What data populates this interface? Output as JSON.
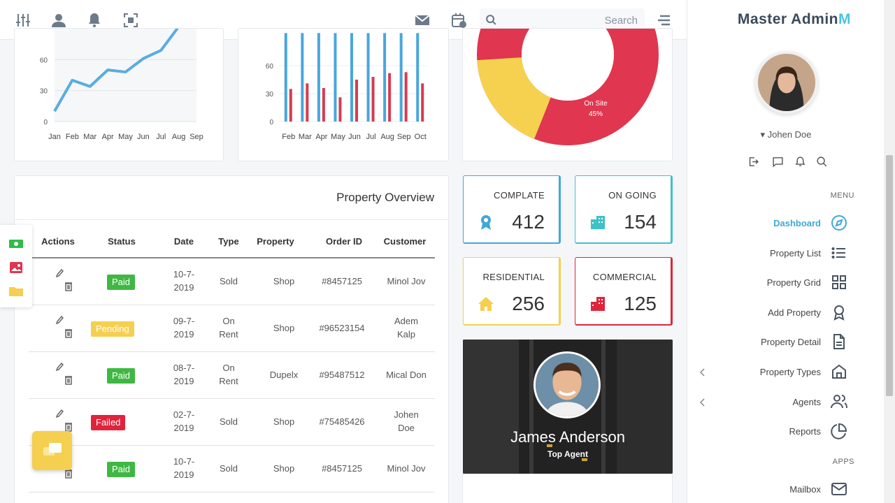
{
  "topbar": {
    "search_placeholder": "Search",
    "icons": [
      "sliders-icon",
      "user-icon",
      "bell-icon",
      "focus-icon",
      "mail-icon",
      "calendar-icon",
      "search-icon",
      "menu-icon"
    ]
  },
  "charts": [
    {
      "chart_data": {
        "type": "line",
        "categories": [
          "Jan",
          "Feb",
          "Mar",
          "Apr",
          "May",
          "Jun",
          "Jul",
          "Aug",
          "Sep"
        ],
        "y_ticks": [
          "0",
          "30",
          "60"
        ],
        "series": [
          {
            "values": [
              10,
              40,
              34,
              50,
              48,
              61,
              69,
              92,
              110
            ]
          }
        ],
        "ylim": [
          0,
          90
        ],
        "color": "#5aace0"
      }
    },
    {
      "chart_data": {
        "type": "bar",
        "categories": [
          "Feb",
          "Mar",
          "Apr",
          "May",
          "Jun",
          "Jul",
          "Aug",
          "Sep",
          "Oct"
        ],
        "y_ticks": [
          "0",
          "30",
          "60"
        ],
        "series": [
          {
            "values": [
              95,
              95,
              95,
              95,
              95,
              95,
              95,
              95,
              95
            ],
            "color": "#4aa6dd"
          },
          {
            "values": [
              35,
              41,
              36,
              26,
              45,
              48,
              52,
              53,
              41
            ],
            "color": "#d53c52"
          }
        ],
        "ylim": [
          0,
          75
        ]
      }
    },
    {
      "chart_data": {
        "type": "pie",
        "slices": [
          {
            "label": "On Site",
            "value": 45,
            "display": "45%",
            "color": "#e0364f"
          },
          {
            "label": "",
            "value": 20,
            "color": "#f5d14f"
          }
        ]
      }
    }
  ],
  "overview": {
    "title": "Property Overview",
    "columns": [
      "Actions",
      "Status",
      "Date",
      "Type",
      "Property",
      "Order ID",
      "Customer"
    ],
    "rows": [
      {
        "status": "Paid",
        "date": [
          "10-7-",
          "2019"
        ],
        "type": [
          "Sold"
        ],
        "property": "Shop",
        "order": "#8457125",
        "customer": [
          "Minol Jov"
        ]
      },
      {
        "status": "Pending",
        "date": [
          "09-7-",
          "2019"
        ],
        "type": [
          "On",
          "Rent"
        ],
        "property": "Shop",
        "order": "#96523154",
        "customer": [
          "Adem",
          "Kalp"
        ]
      },
      {
        "status": "Paid",
        "date": [
          "08-7-",
          "2019"
        ],
        "type": [
          "On",
          "Rent"
        ],
        "property": "Dupelx",
        "order": "#95487512",
        "customer": [
          "Mical Don"
        ]
      },
      {
        "status": "Failed",
        "date": [
          "02-7-",
          "2019"
        ],
        "type": [
          "Sold"
        ],
        "property": "Shop",
        "order": "#75485426",
        "customer": [
          "Johen",
          "Doe"
        ]
      },
      {
        "status": "Paid",
        "date": [
          "10-7-",
          "2019"
        ],
        "type": [
          "Sold"
        ],
        "property": "Shop",
        "order": "#8457125",
        "customer": [
          "Minol Jov"
        ]
      }
    ],
    "status_colors": {
      "Paid": "#3fb843",
      "Pending": "#f5cf4f",
      "Failed": "#e0243c"
    }
  },
  "stats": [
    {
      "label": "COMPLATE",
      "value": "412",
      "color": "#3fa8d8",
      "icon": "award-icon"
    },
    {
      "label": "ON GOING",
      "value": "154",
      "color": "#3fc1c9",
      "icon": "building-icon"
    },
    {
      "label": "RESIDENTIAL",
      "value": "256",
      "color": "#f5cf4f",
      "icon": "home-icon"
    },
    {
      "label": "COMMERCIAL",
      "value": "125",
      "color": "#e0243c",
      "icon": "office-icon"
    }
  ],
  "agent": {
    "name": "James Anderson",
    "role": "Top Agent"
  },
  "sidebar": {
    "brand": "Master Admin",
    "username": "Johen Doe",
    "menu_label": "MENU",
    "apps_label": "APPS",
    "items": [
      {
        "label": "Dashboard",
        "icon": "compass-icon",
        "active": true
      },
      {
        "label": "Property List",
        "icon": "list-icon"
      },
      {
        "label": "Property Grid",
        "icon": "grid-icon"
      },
      {
        "label": "Add Property",
        "icon": "ribbon-icon"
      },
      {
        "label": "Property Detail",
        "icon": "document-icon"
      },
      {
        "label": "Property Types",
        "icon": "house-icon",
        "chevron": true
      },
      {
        "label": "Agents",
        "icon": "users-icon",
        "chevron": true
      },
      {
        "label": "Reports",
        "icon": "pie-icon"
      }
    ],
    "apps": [
      {
        "label": "Mailbox",
        "icon": "mail-icon"
      }
    ]
  }
}
